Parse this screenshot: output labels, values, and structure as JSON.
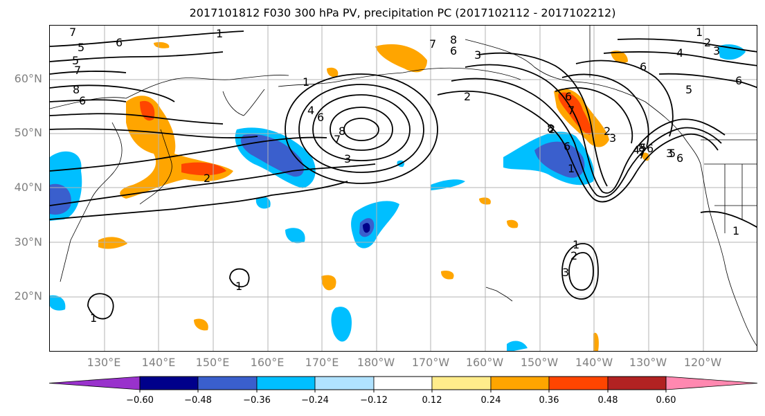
{
  "title": "2017101812 F030 300 hPa PV, precipitation PC (2017102112 - 2017102212)",
  "map": {
    "lat_labels": [
      "60°N",
      "50°N",
      "40°N",
      "30°N",
      "20°N"
    ],
    "lon_labels": [
      "130°E",
      "140°E",
      "150°E",
      "160°E",
      "170°E",
      "180°W",
      "170°W",
      "160°W",
      "150°W",
      "140°W",
      "130°W",
      "120°W"
    ],
    "contour_labels": [
      "7",
      "6",
      "5",
      "5",
      "7",
      "8",
      "6",
      "1",
      "2",
      "8",
      "7",
      "6",
      "3",
      "1",
      "4",
      "6",
      "8",
      "7",
      "3",
      "2",
      "2",
      "1",
      "6",
      "7",
      "8",
      "6",
      "2",
      "3",
      "4",
      "5",
      "6",
      "7",
      "5",
      "6",
      "8",
      "7",
      "3",
      "6",
      "3",
      "2",
      "1",
      "4",
      "5",
      "6",
      "1",
      "2",
      "3",
      "1",
      "1",
      "1"
    ]
  },
  "colorbar": {
    "colors": [
      "#9932cc",
      "#00008b",
      "#3a5fcd",
      "#00bfff",
      "#b0e2ff",
      "#ffffff",
      "#ffec8b",
      "#ffa500",
      "#ff4500",
      "#b22222",
      "#ff88b0"
    ],
    "ticks": [
      "−0.60",
      "−0.48",
      "−0.36",
      "−0.24",
      "−0.12",
      "0.12",
      "0.24",
      "0.36",
      "0.48",
      "0.60"
    ]
  }
}
